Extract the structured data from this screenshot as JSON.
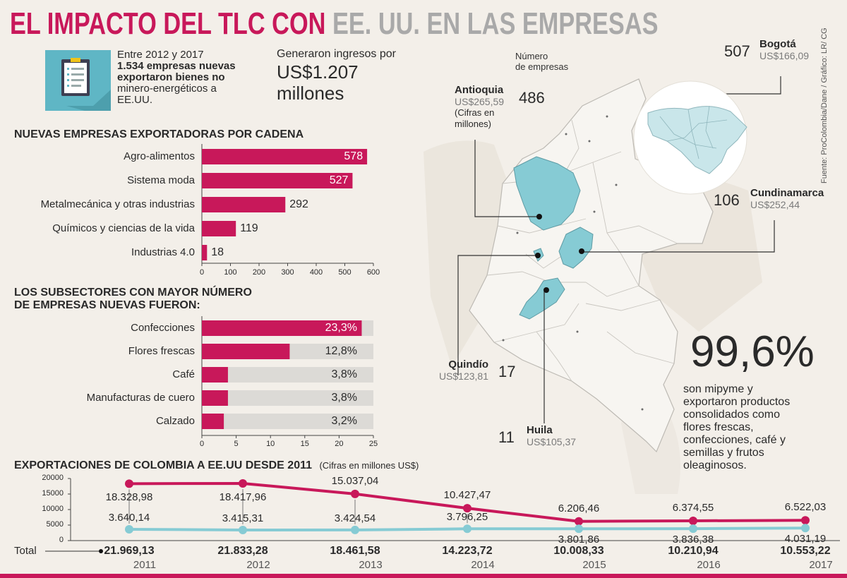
{
  "title": {
    "part1": "EL IMPACTO DEL TLC CON",
    "part2": "EE. UU.",
    "part3": "EN LAS EMPRESAS"
  },
  "colors": {
    "magenta": "#c8185a",
    "teal": "#86cbd4",
    "gray_bar": "#dcdad6",
    "map_fill": "#f7f5f1",
    "map_stroke": "#bdbab4",
    "icon_bg": "#5fb6c5"
  },
  "icons": {
    "intro": "clipboard-icon"
  },
  "intro": {
    "line1": "Entre 2012 y 2017",
    "line2": "1.534 empresas nuevas",
    "line3": "exportaron bienes no",
    "line4": "minero-energéticos a",
    "line5": "EE.UU."
  },
  "income": {
    "label": "Generaron ingresos por",
    "value_line1": "US$1.207",
    "value_line2": "millones"
  },
  "sources": "Fuente: ProColombia/Dane / Gráfico: LR/ CG",
  "map": {
    "legend_num": "Número",
    "legend_emp": "de empresas",
    "antioquia": {
      "name": "Antioquia",
      "value": "US$265,59",
      "note1": "(Cifras en",
      "note2": "millones)",
      "count": "486"
    },
    "bogota": {
      "name": "Bogotá",
      "value": "US$166,09",
      "count": "507"
    },
    "cundinamarca": {
      "name": "Cundinamarca",
      "value": "US$252,44",
      "count": "106"
    },
    "quindio": {
      "name": "Quindío",
      "value": "US$123,81",
      "count": "17"
    },
    "huila": {
      "name": "Huila",
      "value": "US$105,37",
      "count": "11"
    }
  },
  "stat": {
    "percent": "99,6%",
    "line1": "son mipyme y",
    "line2": "exportaron productos",
    "line3": "consolidados como",
    "line4": "flores frescas,",
    "line5": "confecciones, café y",
    "line6": "semillas y frutos",
    "line7": "oleaginosos."
  },
  "chart_data": [
    {
      "type": "bar",
      "orientation": "horizontal",
      "title": "NUEVAS EMPRESAS EXPORTADORAS POR CADENA",
      "categories": [
        "Agro-alimentos",
        "Sistema moda",
        "Metalmecánica y otras industrias",
        "Químicos y ciencias de la vida",
        "Industrias 4.0"
      ],
      "values": [
        578,
        527,
        292,
        119,
        18
      ],
      "labels": [
        "578",
        "527",
        "292",
        "119",
        "18"
      ],
      "xlim": [
        0,
        600
      ],
      "ticks": [
        0,
        100,
        200,
        300,
        400,
        500,
        600
      ],
      "tick_labels": [
        "0",
        "100",
        "200",
        "300",
        "400",
        "500",
        "600"
      ]
    },
    {
      "type": "bar",
      "orientation": "horizontal",
      "title_line1": "LOS SUBSECTORES CON MAYOR NÚMERO",
      "title_line2": "DE EMPRESAS NUEVAS FUERON:",
      "categories": [
        "Confecciones",
        "Flores frescas",
        "Café",
        "Manufacturas de cuero",
        "Calzado"
      ],
      "values": [
        23.3,
        12.8,
        3.8,
        3.8,
        3.2
      ],
      "labels": [
        "23,3%",
        "12,8%",
        "3,8%",
        "3,8%",
        "3,2%"
      ],
      "xlim": [
        0,
        25
      ],
      "ticks": [
        0,
        5,
        10,
        15,
        20,
        25
      ],
      "tick_labels": [
        "0",
        "5",
        "10",
        "15",
        "20",
        "25"
      ]
    },
    {
      "type": "line",
      "title": "EXPORTACIONES DE COLOMBIA A EE.UU DESDE 2011",
      "subtitle": "(Cifras en millones US$)",
      "x": [
        "2011",
        "2012",
        "2013",
        "2014",
        "2015",
        "2016",
        "2017"
      ],
      "series": [
        {
          "values": [
            18328.98,
            18417.96,
            15037.04,
            10427.47,
            6206.46,
            6374.55,
            6522.03
          ],
          "labels": [
            "18.328,98",
            "18.417,96",
            "15.037,04",
            "10.427,47",
            "6.206,46",
            "6.374,55",
            "6.522,03"
          ]
        },
        {
          "values": [
            3640.14,
            3415.31,
            3424.54,
            3796.25,
            3801.86,
            3836.38,
            4031.19
          ],
          "labels": [
            "3.640,14",
            "3.415,31",
            "3.424,54",
            "3.796,25",
            "3.801,86",
            "3.836,38",
            "4.031,19"
          ]
        }
      ],
      "ylim": [
        0,
        20000
      ],
      "yticks": [
        0,
        5000,
        10000,
        15000,
        20000
      ],
      "ytick_labels": [
        "0",
        "5000",
        "10000",
        "15000",
        "20000"
      ],
      "total_label": "Total",
      "totals": [
        "21.969,13",
        "21.833,28",
        "18.461,58",
        "14.223,72",
        "10.008,33",
        "10.210,94",
        "10.553,22"
      ]
    }
  ]
}
